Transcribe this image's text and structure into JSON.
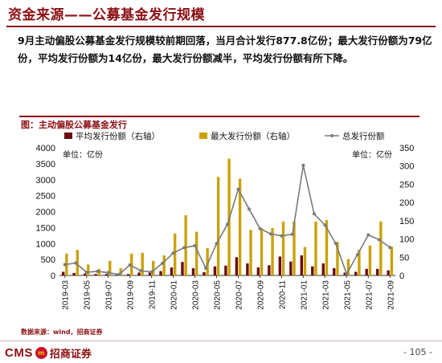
{
  "page": {
    "title": "资金来源——公募基金发行规模",
    "description": "9月主动偏股公募基金发行规模较前期回落，当月合计发行877.8亿份；最大发行份额为79亿份，平均发行份额为14亿份，最大发行份额减半，平均发行份额有所下降。",
    "figure_title": "图：主动偏股公募基金发行",
    "source": "数据来源：wind，招商证券",
    "page_number": "- 105 -",
    "logo_text": "CMS",
    "logo_mark": "m",
    "logo_cn": "招商证券"
  },
  "chart_data": {
    "type": "bar",
    "left_unit": "单位：亿份",
    "right_unit": "单位：亿份",
    "y_left": {
      "min": 0,
      "max": 4000,
      "ticks": [
        0,
        500,
        1000,
        1500,
        2000,
        2500,
        3000,
        3500,
        4000
      ]
    },
    "y_right": {
      "min": 0,
      "max": 350,
      "ticks": [
        0,
        50,
        100,
        150,
        200,
        250,
        300,
        350
      ]
    },
    "x_tick_labels": [
      "2019-03",
      "2019-05",
      "2019-07",
      "2019-09",
      "2019-11",
      "2020-01",
      "2020-03",
      "2020-05",
      "2020-07",
      "2020-09",
      "2020-11",
      "2021-01",
      "2021-03",
      "2021-05",
      "2021-07",
      "2021-09"
    ],
    "categories": [
      "2019-03",
      "2019-04",
      "2019-05",
      "2019-06",
      "2019-07",
      "2019-08",
      "2019-09",
      "2019-10",
      "2019-11",
      "2019-12",
      "2020-01",
      "2020-02",
      "2020-03",
      "2020-04",
      "2020-05",
      "2020-06",
      "2020-07",
      "2020-08",
      "2020-09",
      "2020-10",
      "2020-11",
      "2020-12",
      "2021-01",
      "2021-02",
      "2021-03",
      "2021-04",
      "2021-05",
      "2021-06",
      "2021-07",
      "2021-08",
      "2021-09"
    ],
    "legend": [
      "平均发行份额（右轴）",
      "最大发行份额（右轴）",
      "总发行份额"
    ],
    "series": [
      {
        "name": "平均发行份额（右轴）",
        "axis": "right",
        "color": "#6b0d0d",
        "values": [
          10,
          7,
          5,
          4,
          4,
          3,
          4,
          8,
          8,
          12,
          22,
          37,
          20,
          9,
          25,
          27,
          50,
          33,
          22,
          28,
          52,
          38,
          55,
          25,
          33,
          20,
          8,
          10,
          18,
          18,
          14
        ]
      },
      {
        "name": "最大发行份额（右轴）",
        "axis": "right",
        "color": "#c9a20a",
        "values": [
          60,
          70,
          30,
          18,
          40,
          20,
          60,
          62,
          40,
          55,
          115,
          165,
          120,
          75,
          270,
          320,
          265,
          125,
          130,
          130,
          148,
          148,
          78,
          148,
          152,
          92,
          45,
          70,
          82,
          148,
          79
        ]
      },
      {
        "name": "总发行份额",
        "axis": "left",
        "color": "#7a7a7a",
        "values": [
          340,
          390,
          100,
          130,
          90,
          30,
          330,
          150,
          110,
          380,
          700,
          870,
          930,
          230,
          1000,
          1600,
          2700,
          2080,
          1470,
          1300,
          1240,
          1290,
          3450,
          1930,
          1580,
          1000,
          50,
          650,
          1270,
          1120,
          877.8
        ]
      }
    ]
  }
}
